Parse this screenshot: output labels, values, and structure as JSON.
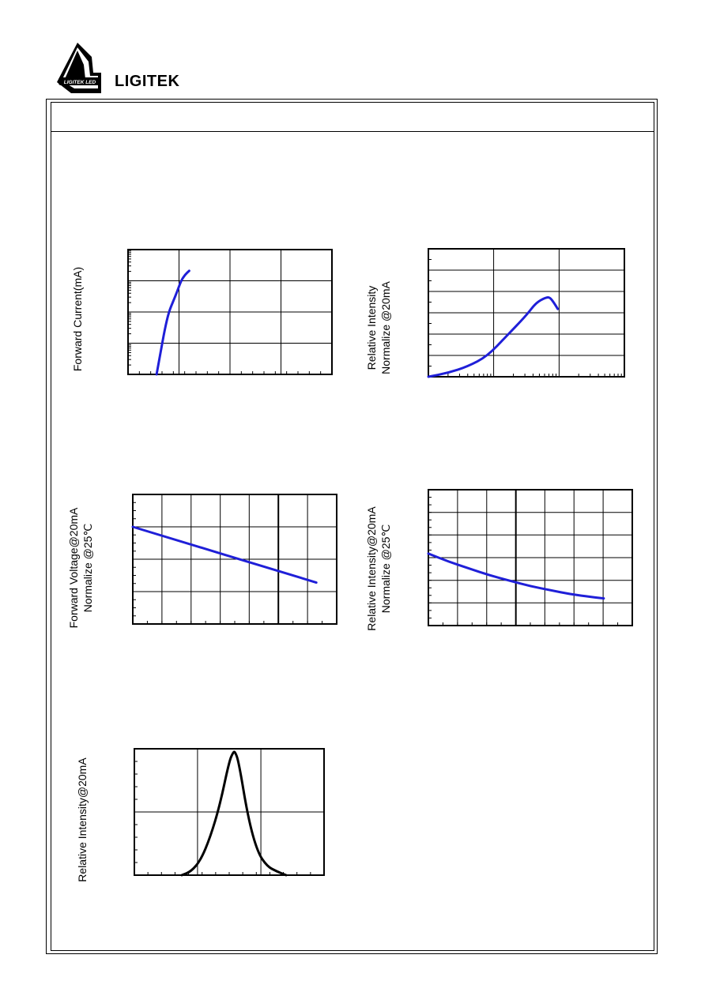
{
  "header": {
    "brand_name": "LIGITEK",
    "logo_text": "LIGITEK LED"
  },
  "colors": {
    "curve_blue": "#1f1fd8",
    "curve_black": "#000000",
    "grid": "#000000"
  },
  "chart_data": [
    {
      "id": "forward-current",
      "type": "line",
      "ylabel": [
        "Forward Current(mA)"
      ],
      "ylog": true,
      "xlim": [
        0,
        1
      ],
      "ylim": [
        0,
        1
      ],
      "grid": true,
      "series": [
        {
          "x": [
            0.14,
            0.16,
            0.18,
            0.2,
            0.22,
            0.24,
            0.26,
            0.28,
            0.3
          ],
          "y": [
            0.0,
            0.18,
            0.36,
            0.5,
            0.58,
            0.66,
            0.75,
            0.8,
            0.83
          ]
        }
      ]
    },
    {
      "id": "relative-intensity-vs-current",
      "type": "line",
      "ylabel": [
        "Relative Intensity",
        "Normalize @20mA"
      ],
      "xlog": true,
      "xlim": [
        0,
        1
      ],
      "ylim": [
        0,
        1
      ],
      "grid": true,
      "series": [
        {
          "x": [
            0.0,
            0.1,
            0.2,
            0.3,
            0.4,
            0.5,
            0.55,
            0.6,
            0.62,
            0.64,
            0.66
          ],
          "y": [
            0.0,
            0.03,
            0.08,
            0.16,
            0.32,
            0.48,
            0.58,
            0.62,
            0.62,
            0.58,
            0.53
          ]
        }
      ]
    },
    {
      "id": "forward-voltage-vs-temp",
      "type": "line",
      "ylabel": [
        "Forward Voltage@20mA",
        "Normalize @25℃"
      ],
      "xlim": [
        0,
        1
      ],
      "ylim": [
        0,
        1
      ],
      "grid": true,
      "series": [
        {
          "x": [
            0.0,
            0.9
          ],
          "y": [
            0.75,
            0.32
          ]
        }
      ]
    },
    {
      "id": "relative-intensity-vs-temp",
      "type": "line",
      "ylabel": [
        "Relative Intensity@20mA",
        "Normalize @25℃"
      ],
      "xlim": [
        0,
        1
      ],
      "ylim": [
        0,
        1
      ],
      "grid": true,
      "series": [
        {
          "x": [
            0.0,
            0.1,
            0.2,
            0.3,
            0.4,
            0.5,
            0.6,
            0.7,
            0.8,
            0.86
          ],
          "y": [
            0.53,
            0.47,
            0.42,
            0.37,
            0.33,
            0.29,
            0.26,
            0.23,
            0.21,
            0.2
          ]
        }
      ]
    },
    {
      "id": "spectrum",
      "type": "line",
      "ylabel": [
        "Relative Intensity@20mA"
      ],
      "xlim": [
        0,
        1
      ],
      "ylim": [
        0,
        1
      ],
      "grid": true,
      "series": [
        {
          "x": [
            0.25,
            0.3,
            0.35,
            0.4,
            0.45,
            0.5,
            0.52,
            0.53,
            0.55,
            0.6,
            0.65,
            0.7,
            0.75,
            0.8
          ],
          "y": [
            0.0,
            0.03,
            0.12,
            0.3,
            0.55,
            0.9,
            0.97,
            0.98,
            0.9,
            0.45,
            0.18,
            0.07,
            0.03,
            0.0
          ]
        }
      ]
    }
  ]
}
